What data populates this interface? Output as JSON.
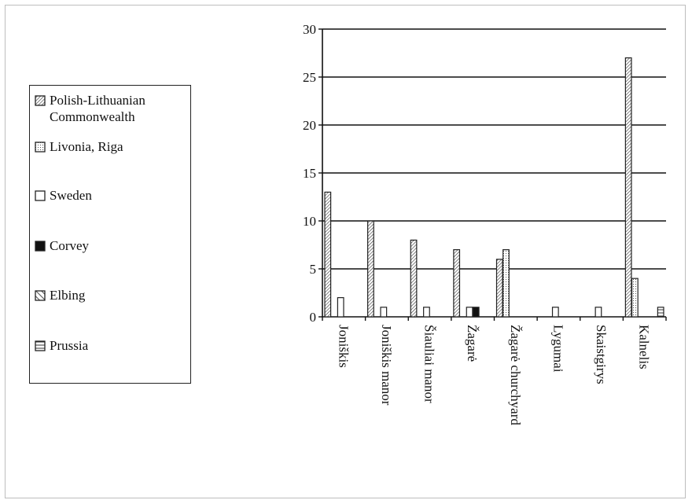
{
  "chart_data": {
    "type": "bar",
    "categories": [
      "Joniškis",
      "Joniškis manor",
      "Šiauliai manor",
      "Žagarė",
      "Žagarė churchyard",
      "Lygumai",
      "Skaistgirys",
      "Kalnelis"
    ],
    "series": [
      {
        "name": "Polish-Lithuanian\nCommonwealth",
        "pattern": "diag-dense",
        "values": [
          13,
          10,
          8,
          7,
          6,
          0,
          0,
          27
        ]
      },
      {
        "name": "Livonia, Riga",
        "pattern": "dots",
        "values": [
          0,
          0,
          0,
          0,
          7,
          0,
          0,
          4
        ]
      },
      {
        "name": "Sweden",
        "pattern": "empty",
        "values": [
          2,
          1,
          1,
          1,
          0,
          1,
          1,
          0
        ]
      },
      {
        "name": "Corvey",
        "pattern": "solid",
        "values": [
          0,
          0,
          0,
          1,
          0,
          0,
          0,
          0
        ]
      },
      {
        "name": "Elbing",
        "pattern": "diag-wide",
        "values": [
          0,
          0,
          0,
          0,
          0,
          0,
          0,
          0
        ]
      },
      {
        "name": "Prussia",
        "pattern": "horiz",
        "values": [
          0,
          0,
          0,
          0,
          0,
          0,
          0,
          1
        ]
      }
    ],
    "ylim": [
      0,
      30
    ],
    "yticks": [
      0,
      5,
      10,
      15,
      20,
      25,
      30
    ],
    "grid": true,
    "legend_position": "left",
    "xlabel": "",
    "ylabel": "",
    "title": ""
  },
  "colors": {
    "bar_stroke": "#222222",
    "grid": "#111111",
    "solid_fill": "#111111"
  }
}
